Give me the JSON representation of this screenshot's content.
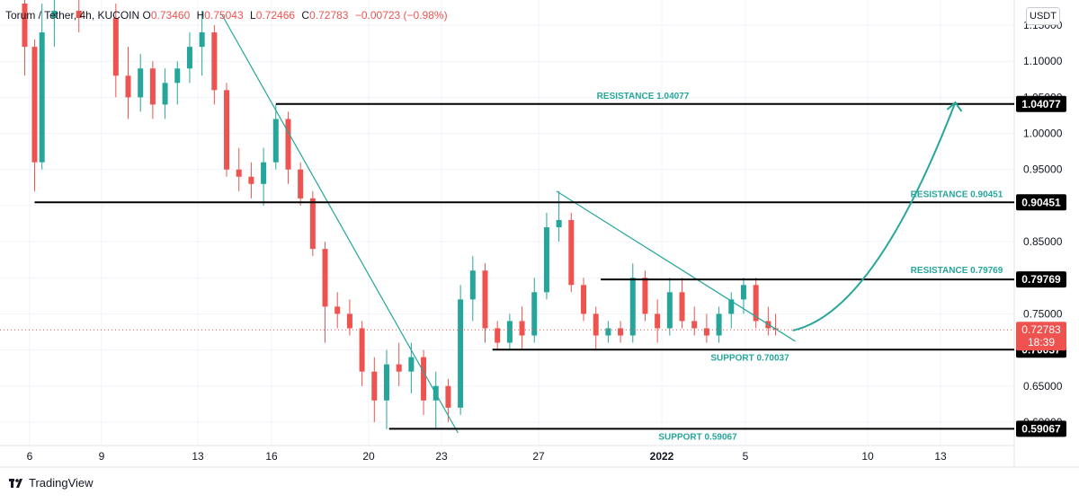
{
  "legend": {
    "symbol": "Torum / Tether, 4h, KUCOIN",
    "open_label": "O",
    "open": "0.73460",
    "high_label": "H",
    "high": "0.75043",
    "low_label": "L",
    "low": "0.72466",
    "close_label": "C",
    "close": "0.72783",
    "change": "−0.00723 (−0.98%)"
  },
  "currency_button": "USDT",
  "footer": {
    "brand": "TradingView"
  },
  "colors": {
    "up": "#26a69a",
    "down": "#ef5350",
    "level": "#000000",
    "trend": "#26a69a",
    "label": "#26a69a"
  },
  "chart_data": {
    "type": "candlestick",
    "title": "Torum / Tether, 4h, KUCOIN",
    "x_ticks": [
      "6",
      "9",
      "13",
      "16",
      "20",
      "23",
      "27",
      "2022",
      "5",
      "10",
      "13"
    ],
    "y_ticks": [
      "1.15000",
      "1.10000",
      "1.05000",
      "1.00000",
      "0.95000",
      "0.90000",
      "0.85000",
      "0.80000",
      "0.75000",
      "0.70000",
      "0.65000",
      "0.60000"
    ],
    "ylim": [
      0.58,
      1.16
    ],
    "current_price": {
      "value": "0.72783",
      "countdown": "18:39"
    },
    "levels": [
      {
        "name": "RESISTANCE 1.04077",
        "value": 1.04077,
        "tag": "1.04077",
        "x_from": "16",
        "x_to": "13"
      },
      {
        "name": "RESISTANCE 0.90451",
        "value": 0.90451,
        "tag": "0.90451",
        "x_from": "6",
        "x_to": "13"
      },
      {
        "name": "RESISTANCE 0.79769",
        "value": 0.79769,
        "tag": "0.79769",
        "x_from": "29",
        "x_to": "13"
      },
      {
        "name": "SUPPORT 0.70037",
        "value": 0.70037,
        "tag": "0.70037",
        "x_from": "25",
        "x_to": "13"
      },
      {
        "name": "SUPPORT 0.59067",
        "value": 0.59067,
        "tag": "0.59067",
        "x_from": "20",
        "x_to": "13"
      }
    ],
    "trendlines": [
      {
        "from": {
          "t": 13.8,
          "y": 1.165
        },
        "to": {
          "t": 23.4,
          "y": 0.585
        }
      },
      {
        "from": {
          "t": 27.4,
          "y": 0.92
        },
        "to": {
          "t": 37.1,
          "y": 0.712
        }
      }
    ],
    "projection": {
      "from": {
        "t": 37.0,
        "y": 0.727
      },
      "to": {
        "t": 43.6,
        "y": 1.043
      }
    },
    "candles": [
      [
        5.8,
        1.18,
        1.19,
        1.08,
        1.12
      ],
      [
        6.2,
        1.12,
        1.13,
        0.92,
        0.96
      ],
      [
        6.5,
        0.96,
        1.18,
        0.95,
        1.14
      ],
      [
        7.0,
        1.16,
        1.19,
        1.12,
        1.17
      ],
      [
        8.0,
        1.17,
        1.19,
        1.14,
        1.16
      ],
      [
        9.5,
        1.16,
        1.18,
        1.05,
        1.08
      ],
      [
        10.0,
        1.08,
        1.12,
        1.02,
        1.05
      ],
      [
        10.5,
        1.05,
        1.11,
        1.03,
        1.09
      ],
      [
        11.0,
        1.09,
        1.1,
        1.02,
        1.04
      ],
      [
        11.5,
        1.04,
        1.09,
        1.02,
        1.07
      ],
      [
        12.0,
        1.07,
        1.1,
        1.04,
        1.09
      ],
      [
        12.5,
        1.09,
        1.14,
        1.07,
        1.12
      ],
      [
        13.0,
        1.12,
        1.17,
        1.08,
        1.14
      ],
      [
        13.5,
        1.14,
        1.15,
        1.04,
        1.06
      ],
      [
        14.0,
        1.06,
        1.07,
        0.94,
        0.95
      ],
      [
        14.5,
        0.95,
        0.98,
        0.92,
        0.94
      ],
      [
        15.0,
        0.94,
        0.96,
        0.91,
        0.93
      ],
      [
        15.5,
        0.93,
        0.98,
        0.9,
        0.96
      ],
      [
        16.0,
        0.96,
        1.04,
        0.95,
        1.02
      ],
      [
        16.5,
        1.02,
        1.03,
        0.93,
        0.95
      ],
      [
        17.0,
        0.95,
        0.96,
        0.9,
        0.91
      ],
      [
        17.5,
        0.91,
        0.92,
        0.83,
        0.84
      ],
      [
        18.0,
        0.84,
        0.85,
        0.71,
        0.76
      ],
      [
        18.5,
        0.76,
        0.78,
        0.73,
        0.75
      ],
      [
        19.0,
        0.75,
        0.77,
        0.72,
        0.73
      ],
      [
        19.5,
        0.73,
        0.74,
        0.65,
        0.67
      ],
      [
        20.0,
        0.67,
        0.69,
        0.6,
        0.63
      ],
      [
        20.5,
        0.63,
        0.7,
        0.59,
        0.68
      ],
      [
        21.0,
        0.68,
        0.71,
        0.65,
        0.67
      ],
      [
        21.5,
        0.67,
        0.71,
        0.64,
        0.69
      ],
      [
        22.0,
        0.69,
        0.7,
        0.61,
        0.63
      ],
      [
        22.5,
        0.63,
        0.67,
        0.59,
        0.65
      ],
      [
        23.0,
        0.65,
        0.66,
        0.6,
        0.62
      ],
      [
        23.5,
        0.62,
        0.79,
        0.61,
        0.77
      ],
      [
        24.0,
        0.77,
        0.83,
        0.74,
        0.81
      ],
      [
        24.5,
        0.81,
        0.82,
        0.71,
        0.73
      ],
      [
        25.0,
        0.73,
        0.74,
        0.7,
        0.71
      ],
      [
        25.5,
        0.71,
        0.75,
        0.7,
        0.74
      ],
      [
        26.0,
        0.74,
        0.76,
        0.7,
        0.72
      ],
      [
        26.5,
        0.72,
        0.8,
        0.71,
        0.78
      ],
      [
        27.0,
        0.78,
        0.89,
        0.77,
        0.87
      ],
      [
        27.5,
        0.87,
        0.92,
        0.85,
        0.88
      ],
      [
        28.0,
        0.88,
        0.89,
        0.78,
        0.79
      ],
      [
        28.5,
        0.79,
        0.8,
        0.74,
        0.75
      ],
      [
        29.0,
        0.75,
        0.76,
        0.7,
        0.72
      ],
      [
        29.5,
        0.72,
        0.74,
        0.71,
        0.73
      ],
      [
        30.0,
        0.73,
        0.74,
        0.71,
        0.72
      ],
      [
        30.5,
        0.72,
        0.82,
        0.71,
        0.8
      ],
      [
        31.0,
        0.8,
        0.81,
        0.74,
        0.75
      ],
      [
        31.5,
        0.75,
        0.77,
        0.71,
        0.73
      ],
      [
        32.0,
        0.73,
        0.8,
        0.72,
        0.78
      ],
      [
        32.5,
        0.78,
        0.8,
        0.73,
        0.74
      ],
      [
        33.0,
        0.74,
        0.76,
        0.72,
        0.73
      ],
      [
        33.5,
        0.73,
        0.75,
        0.71,
        0.72
      ],
      [
        34.0,
        0.72,
        0.76,
        0.71,
        0.75
      ],
      [
        34.5,
        0.75,
        0.78,
        0.73,
        0.77
      ],
      [
        35.0,
        0.77,
        0.8,
        0.75,
        0.79
      ],
      [
        35.5,
        0.79,
        0.8,
        0.73,
        0.74
      ],
      [
        36.0,
        0.74,
        0.76,
        0.72,
        0.73
      ],
      [
        36.3,
        0.73,
        0.75,
        0.72,
        0.728
      ]
    ]
  },
  "annotations": [
    "RESISTANCE 1.04077",
    "RESISTANCE 0.90451",
    "RESISTANCE 0.79769",
    "SUPPORT 0.70037",
    "SUPPORT 0.59067"
  ]
}
